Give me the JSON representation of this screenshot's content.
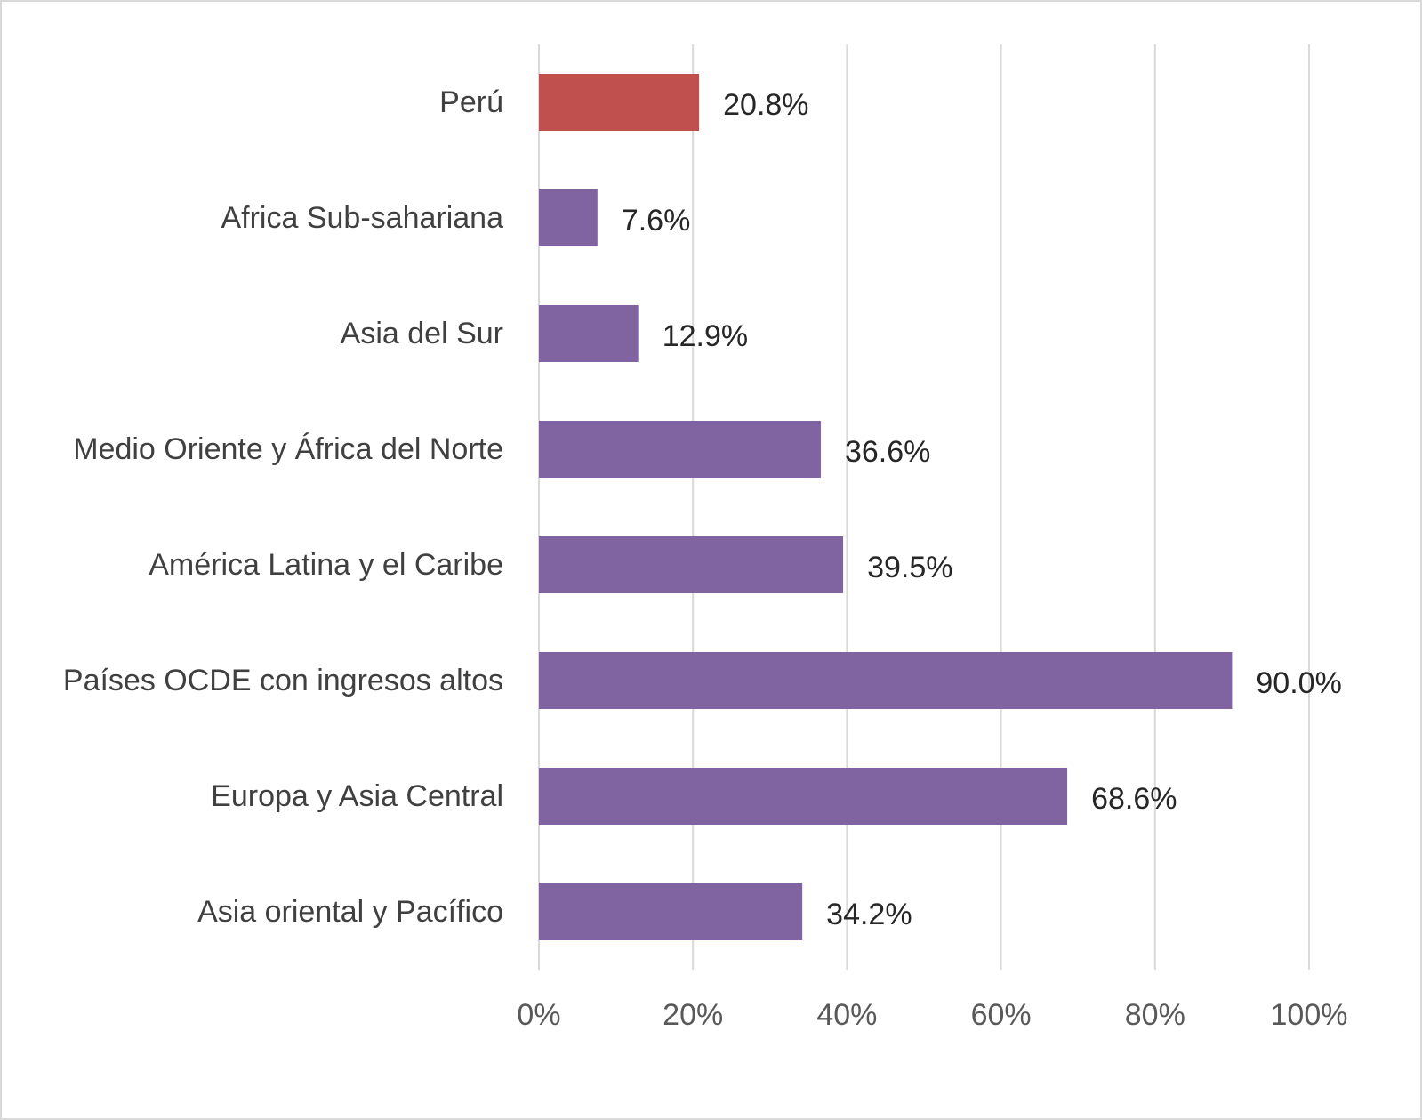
{
  "chart_data": {
    "type": "bar",
    "orientation": "horizontal",
    "categories": [
      "Perú",
      "Africa Sub-sahariana",
      "Asia del Sur",
      "Medio Oriente y África del Norte",
      "América Latina y el Caribe",
      "Países OCDE con ingresos altos",
      "Europa y Asia Central",
      "Asia oriental y Pacífico"
    ],
    "values": [
      20.8,
      7.6,
      12.9,
      36.6,
      39.5,
      90.0,
      68.6,
      34.2
    ],
    "data_labels": [
      "20.8%",
      "7.6%",
      "12.9%",
      "36.6%",
      "39.5%",
      "90.0%",
      "68.6%",
      "34.2%"
    ],
    "bar_colors": [
      "#C0504D",
      "#8064A2",
      "#8064A2",
      "#8064A2",
      "#8064A2",
      "#8064A2",
      "#8064A2",
      "#8064A2"
    ],
    "xlim": [
      0,
      100
    ],
    "xticks": [
      0,
      20,
      40,
      60,
      80,
      100
    ],
    "xtick_labels": [
      "0%",
      "20%",
      "40%",
      "60%",
      "80%",
      "100%"
    ],
    "title": "",
    "xlabel": "",
    "ylabel": "",
    "grid": "vertical",
    "legend": "none"
  },
  "colors": {
    "highlight": "#C0504D",
    "bar": "#8064A2",
    "gridline": "#d9d9d9",
    "frame": "#d9d9d9"
  }
}
